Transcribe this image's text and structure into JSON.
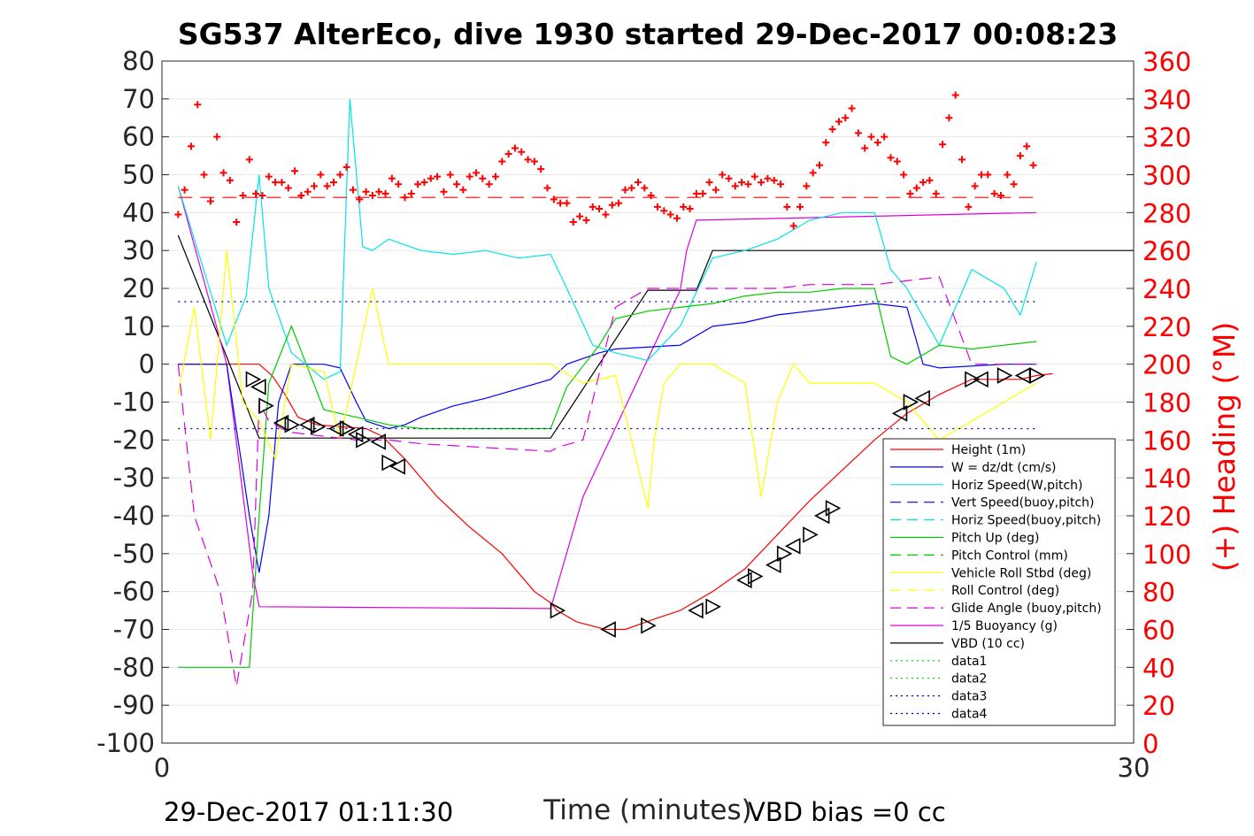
{
  "chart_data": {
    "type": "line",
    "title": "SG537 AlterEco, dive 1930 started 29-Dec-2017 00:08:23",
    "xlabel": "Time (minutes)",
    "ylabel_right": "(+) Heading (°M)",
    "footer_left": "29-Dec-2017 01:11:30",
    "footer_right": "VBD bias =0 cc",
    "xlim": [
      0,
      30
    ],
    "ylim": [
      -100,
      80
    ],
    "y2lim": [
      0,
      360
    ],
    "x_ticks": [
      "0",
      "30"
    ],
    "y_ticks": [
      "80",
      "70",
      "60",
      "50",
      "40",
      "30",
      "20",
      "10",
      "0",
      "-10",
      "-20",
      "-30",
      "-40",
      "-50",
      "-60",
      "-70",
      "-80",
      "-90",
      "-100"
    ],
    "y2_ticks": [
      "360",
      "340",
      "320",
      "300",
      "280",
      "260",
      "240",
      "220",
      "200",
      "180",
      "160",
      "140",
      "120",
      "100",
      "80",
      "60",
      "40",
      "20",
      "0"
    ],
    "grid": true,
    "legend_placement": "bottom-right",
    "colors": {
      "height": "#ff0000",
      "w": "#0000ff",
      "hspeed": "#00e5e5",
      "pitch": "#00cc00",
      "roll": "#ffff00",
      "glide": "#dd00dd",
      "vbd": "#000000",
      "heading": "#ff0000",
      "data": "#000099"
    },
    "legend": [
      {
        "label": "Height (1m)",
        "color": "#ff0000",
        "style": "solid"
      },
      {
        "label": "W = dz/dt (cm/s)",
        "color": "#0000ff",
        "style": "solid"
      },
      {
        "label": "Horiz Speed(W,pitch)",
        "color": "#00e5e5",
        "style": "solid"
      },
      {
        "label": "Vert Speed(buoy,pitch)",
        "color": "#0000ff",
        "style": "dash"
      },
      {
        "label": "Horiz Speed(buoy,pitch)",
        "color": "#00e5e5",
        "style": "dash"
      },
      {
        "label": "Pitch Up (deg)",
        "color": "#00cc00",
        "style": "solid"
      },
      {
        "label": "Pitch Control (mm)",
        "color": "#00cc00",
        "style": "dash"
      },
      {
        "label": "Vehicle Roll Stbd (deg)",
        "color": "#ffff00",
        "style": "solid"
      },
      {
        "label": "Roll Control (deg)",
        "color": "#ffff00",
        "style": "dash"
      },
      {
        "label": "Glide Angle (buoy,pitch)",
        "color": "#dd00dd",
        "style": "dash"
      },
      {
        "label": "1/5 Buoyancy (g)",
        "color": "#dd00dd",
        "style": "solid"
      },
      {
        "label": "VBD (10 cc)",
        "color": "#000000",
        "style": "solid"
      },
      {
        "label": "data1",
        "color": "#00cc00",
        "style": "dot"
      },
      {
        "label": "data2",
        "color": "#00cc00",
        "style": "dot"
      },
      {
        "label": "data3",
        "color": "#000099",
        "style": "dot"
      },
      {
        "label": "data4",
        "color": "#000099",
        "style": "dot"
      }
    ],
    "series": [
      {
        "key": "height",
        "x": [
          0.5,
          2,
          3,
          3.4,
          3.8,
          4.2,
          4.8,
          5.5,
          6.3,
          6.8,
          7.5,
          8.5,
          9.5,
          10.5,
          11,
          11.5,
          12,
          12.2,
          12.8,
          13.7,
          14.3,
          15.3,
          16,
          17,
          18,
          19,
          20,
          21,
          22,
          23,
          24,
          25,
          26.5,
          27,
          27.5
        ],
        "y": [
          0,
          0,
          0,
          -3,
          -8,
          -14,
          -16,
          -16.5,
          -17,
          -19,
          -25,
          -35,
          -43,
          -50,
          -55,
          -60,
          -63,
          -65,
          -68,
          -70,
          -70,
          -67,
          -65,
          -60,
          -54,
          -45,
          -36,
          -28,
          -20,
          -13,
          -8,
          -4,
          -4,
          -3,
          -2.5
        ]
      },
      {
        "key": "vbd",
        "x": [
          0.5,
          3,
          12,
          13.5,
          15,
          16.5,
          17,
          30
        ],
        "y": [
          34,
          -19.5,
          -19.5,
          0,
          19.5,
          19.5,
          30,
          30
        ]
      },
      {
        "key": "buoyancy",
        "x": [
          0.5,
          2,
          2.8,
          3,
          12,
          13,
          16,
          16.2,
          16.5,
          27
        ],
        "y": [
          47,
          0,
          -55,
          -64,
          -64.5,
          -35,
          19.5,
          30,
          38,
          40
        ]
      },
      {
        "key": "w_cms",
        "x": [
          0.5,
          2,
          2.7,
          3,
          3.3,
          3.6,
          4,
          5,
          5.5,
          6,
          6.3,
          7,
          7.5,
          8,
          9,
          10,
          12,
          12.5,
          13.5,
          14,
          16,
          17,
          18,
          19,
          20,
          21,
          22,
          23,
          23.5,
          24,
          26,
          27
        ],
        "y": [
          0,
          0,
          -40,
          -55,
          -40,
          -10,
          0,
          0,
          -1,
          -10,
          -15,
          -17,
          -16,
          -14,
          -11,
          -9,
          -4,
          0,
          3,
          4,
          5,
          10,
          11,
          13,
          14,
          15,
          16,
          15,
          0,
          -1,
          0,
          0
        ]
      },
      {
        "key": "hspeed",
        "x": [
          0.5,
          2,
          2.6,
          3,
          3.3,
          4,
          5,
          5.5,
          5.8,
          6.2,
          6.5,
          7,
          8,
          9,
          10,
          11,
          12,
          12.5,
          13.3,
          14,
          15,
          16,
          17,
          18,
          19,
          20,
          21,
          22,
          22.5,
          23,
          24,
          25,
          26,
          26.5,
          27
        ],
        "y": [
          47,
          5,
          18,
          50,
          20,
          3,
          -4,
          -2,
          70,
          31,
          30,
          33,
          30,
          29,
          30,
          28,
          29,
          20,
          5,
          3,
          1,
          10,
          28,
          30,
          33,
          38,
          40,
          40,
          25,
          20,
          5,
          25,
          20,
          13,
          27
        ]
      },
      {
        "key": "pitch",
        "x": [
          0.5,
          2,
          2.7,
          3,
          3.3,
          4,
          5,
          6,
          7,
          8,
          10,
          12,
          12.5,
          13.5,
          14,
          15,
          16,
          17,
          18,
          19,
          20,
          21,
          22,
          22.5,
          23,
          24,
          25,
          26,
          27
        ],
        "y": [
          -80,
          -80,
          -80,
          -40,
          -5,
          10,
          -12,
          -14,
          -16,
          -17,
          -17,
          -17,
          -6,
          5,
          12,
          14,
          15,
          16,
          18,
          19,
          19,
          20,
          20,
          2,
          0,
          5,
          4,
          5,
          6
        ]
      },
      {
        "key": "roll",
        "x": [
          0.5,
          1,
          1.5,
          2,
          2.5,
          3,
          3.5,
          4,
          5,
          5.5,
          6,
          6.5,
          7,
          8,
          10,
          12,
          13,
          14,
          14.5,
          15,
          15.2,
          15.5,
          16,
          17,
          18,
          18.5,
          19,
          19.5,
          20,
          21,
          22,
          23,
          24,
          26,
          27
        ],
        "y": [
          -8,
          15,
          -20,
          30,
          -10,
          -15,
          -25,
          0,
          -2,
          -20,
          0,
          20,
          0,
          0,
          0,
          0,
          -5,
          -3,
          -20,
          -38,
          -20,
          -5,
          0,
          0,
          -5,
          -35,
          -10,
          0,
          -5,
          -5,
          -5,
          -10,
          -20,
          -10,
          -5
        ]
      },
      {
        "key": "glide",
        "x": [
          0.5,
          1,
          1.8,
          2.3,
          2.8,
          3,
          3.3,
          3.7,
          4,
          5,
          6,
          7,
          8,
          10,
          12,
          12.2,
          13,
          14,
          15,
          16,
          17,
          18,
          19,
          20,
          21,
          22,
          23,
          24,
          25,
          26,
          27
        ],
        "y": [
          0,
          -40,
          -60,
          -85,
          -60,
          -10,
          -15,
          -17,
          -18,
          -19,
          -20,
          -20,
          -21,
          -22,
          -23,
          -22,
          -20,
          15,
          20,
          20,
          20,
          20,
          20,
          21,
          21,
          21,
          22,
          23,
          0,
          0,
          0
        ]
      },
      {
        "key": "data_upper",
        "x": [
          0.5,
          27
        ],
        "y": [
          16.5,
          16.5
        ]
      },
      {
        "key": "data_lower",
        "x": [
          0.5,
          27
        ],
        "y": [
          -17,
          -17
        ]
      },
      {
        "key": "heading_mean",
        "x": [
          0.5,
          27
        ],
        "y2": [
          288,
          288
        ]
      }
    ],
    "heading_points": {
      "x": [
        0.5,
        0.7,
        0.9,
        1.1,
        1.3,
        1.5,
        1.7,
        1.9,
        2.1,
        2.3,
        2.5,
        2.7,
        2.9,
        3.1,
        3.3,
        3.5,
        3.7,
        3.9,
        4.1,
        4.3,
        4.5,
        4.7,
        4.9,
        5.1,
        5.3,
        5.5,
        5.7,
        5.9,
        6.1,
        6.3,
        6.5,
        6.7,
        6.9,
        7.1,
        7.3,
        7.5,
        7.7,
        7.9,
        8.1,
        8.3,
        8.5,
        8.7,
        8.9,
        9.1,
        9.3,
        9.5,
        9.7,
        9.9,
        10.1,
        10.3,
        10.5,
        10.7,
        10.9,
        11.1,
        11.3,
        11.5,
        11.7,
        11.9,
        12.1,
        12.3,
        12.5,
        12.7,
        12.9,
        13.1,
        13.3,
        13.5,
        13.7,
        13.9,
        14.1,
        14.3,
        14.5,
        14.7,
        14.9,
        15.1,
        15.3,
        15.5,
        15.7,
        15.9,
        16.1,
        16.3,
        16.5,
        16.7,
        16.9,
        17.1,
        17.3,
        17.5,
        17.7,
        17.9,
        18.1,
        18.3,
        18.5,
        18.7,
        18.9,
        19.1,
        19.3,
        19.5,
        19.7,
        19.9,
        20.1,
        20.3,
        20.5,
        20.7,
        20.9,
        21.1,
        21.3,
        21.5,
        21.7,
        21.9,
        22.1,
        22.3,
        22.5,
        22.7,
        22.9,
        23.1,
        23.3,
        23.5,
        23.7,
        23.9,
        24.1,
        24.3,
        24.5,
        24.7,
        24.9,
        25.1,
        25.3,
        25.5,
        25.7,
        25.9,
        26.1,
        26.3,
        26.5,
        26.7,
        26.9
      ],
      "y2": [
        279,
        292,
        315,
        337,
        300,
        286,
        320,
        301,
        297,
        275,
        289,
        308,
        290,
        289,
        299,
        296,
        296,
        293,
        302,
        289,
        291,
        294,
        300,
        294,
        296,
        300,
        304,
        292,
        287,
        291,
        289,
        291,
        290,
        298,
        295,
        288,
        290,
        295,
        296,
        298,
        299,
        291,
        300,
        295,
        292,
        299,
        301,
        298,
        295,
        299,
        307,
        311,
        314,
        312,
        308,
        307,
        303,
        293,
        287,
        285,
        285,
        275,
        278,
        276,
        283,
        282,
        279,
        284,
        285,
        292,
        293,
        296,
        293,
        289,
        283,
        281,
        279,
        277,
        283,
        282,
        290,
        290,
        296,
        292,
        300,
        298,
        294,
        296,
        295,
        299,
        296,
        298,
        297,
        295,
        283,
        273,
        283,
        294,
        301,
        305,
        317,
        324,
        328,
        330,
        335,
        322,
        314,
        320,
        317,
        320,
        309,
        307,
        300,
        290,
        293,
        296,
        297,
        290,
        316,
        330,
        342,
        308,
        283,
        294,
        300,
        300,
        290,
        289,
        300,
        295,
        310,
        315,
        305
      ]
    },
    "markers": {
      "x": [
        2.8,
        3.0,
        3.2,
        3.7,
        4.0,
        4.5,
        4.8,
        5.4,
        5.7,
        6.0,
        6.2,
        6.7,
        7.0,
        7.3,
        12.2,
        13.8,
        15.0,
        16.5,
        17.0,
        18.0,
        18.3,
        18.9,
        19.2,
        19.5,
        20.0,
        20.4,
        20.7,
        22.8,
        23.1,
        23.5,
        25.0,
        25.3,
        26.0,
        26.6,
        27.0
      ],
      "y": [
        -4,
        -6,
        -11,
        -15.5,
        -16,
        -16,
        -16.5,
        -17,
        -17,
        -18.5,
        -20,
        -20.5,
        -26,
        -27,
        -65,
        -70,
        -69,
        -65,
        -64,
        -57,
        -56,
        -53,
        -50,
        -48,
        -45,
        -40,
        -38,
        -13,
        -10,
        -9,
        -4,
        -4,
        -3,
        -3,
        -3
      ]
    }
  }
}
